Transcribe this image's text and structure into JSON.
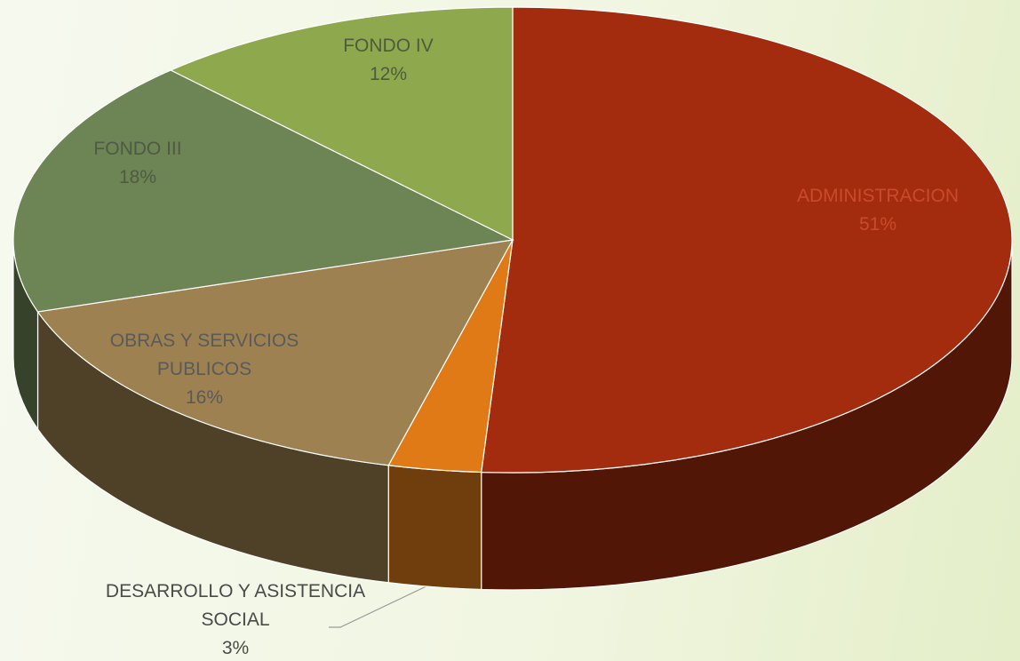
{
  "chart_data": {
    "type": "pie",
    "view": "3d",
    "categories": [
      "ADMINISTRACION",
      "DESARROLLO Y ASISTENCIA SOCIAL",
      "OBRAS Y SERVICIOS PUBLICOS",
      "FONDO III",
      "FONDO IV"
    ],
    "values": [
      51,
      3,
      16,
      18,
      12
    ],
    "value_labels": [
      "51%",
      "3%",
      "16%",
      "18%",
      "12%"
    ],
    "colors": [
      "#a42c0e",
      "#df7a17",
      "#9e8150",
      "#6d8454",
      "#8ea94d"
    ]
  }
}
